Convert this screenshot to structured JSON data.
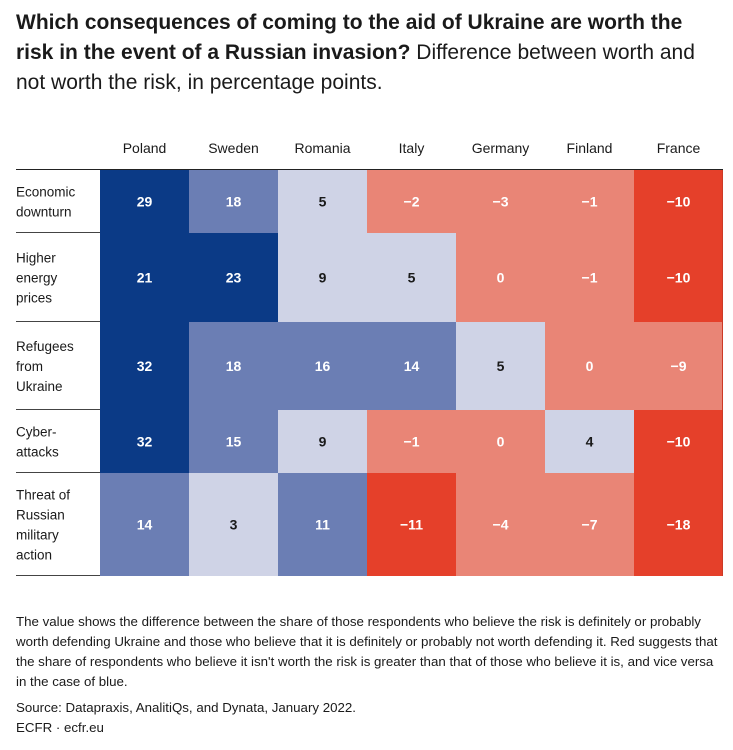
{
  "chart_data": {
    "type": "heatmap",
    "title": "Which consequences of coming to the aid of Ukraine are worth the risk in the event of a Russian invasion?",
    "subtitle": "Difference between worth and not worth the risk, in percentage points.",
    "columns": [
      "Poland",
      "Sweden",
      "Romania",
      "Italy",
      "Germany",
      "Finland",
      "France"
    ],
    "rows": [
      {
        "label_lines": [
          "Economic",
          "downturn"
        ],
        "values": [
          29,
          18,
          5,
          -2,
          -3,
          -1,
          -10
        ]
      },
      {
        "label_lines": [
          "Higher",
          "energy",
          "prices"
        ],
        "values": [
          21,
          23,
          9,
          5,
          0,
          -1,
          -10
        ]
      },
      {
        "label_lines": [
          "Refugees",
          "from",
          "Ukraine"
        ],
        "values": [
          32,
          18,
          16,
          14,
          5,
          0,
          -9
        ]
      },
      {
        "label_lines": [
          "Cyber-",
          "attacks"
        ],
        "values": [
          32,
          15,
          9,
          -1,
          0,
          4,
          -10
        ]
      },
      {
        "label_lines": [
          "Threat of",
          "Russian",
          "military",
          "action"
        ],
        "values": [
          14,
          3,
          11,
          -11,
          -4,
          -7,
          -18
        ]
      }
    ],
    "value_labels": [
      [
        "29",
        "18",
        "5",
        "−2",
        "−3",
        "−1",
        "−10"
      ],
      [
        "21",
        "23",
        "9",
        "5",
        "0",
        "−1",
        "−10"
      ],
      [
        "32",
        "18",
        "16",
        "14",
        "5",
        "0",
        "−9"
      ],
      [
        "32",
        "15",
        "9",
        "−1",
        "0",
        "4",
        "−10"
      ],
      [
        "14",
        "3",
        "11",
        "−11",
        "−4",
        "−7",
        "−18"
      ]
    ],
    "colors": {
      "strong_blue": "#0b3a86",
      "mid_blue": "#6b7eb4",
      "light_blue": "#cfd3e6",
      "salmon": "#e98576",
      "strong_red": "#e5402a"
    }
  },
  "note": "The value shows the difference between the share of those respondents who believe the risk is definitely or probably worth defending Ukraine and those who believe that it is definitely or probably not worth defending it. Red suggests that the share of respondents who believe it isn't worth the risk is greater than that of those who believe it is, and vice versa in the case of blue.",
  "source": "Source: Datapraxis, AnalitiQs, and Dynata, January 2022.",
  "footer": "ECFR · ecfr.eu"
}
